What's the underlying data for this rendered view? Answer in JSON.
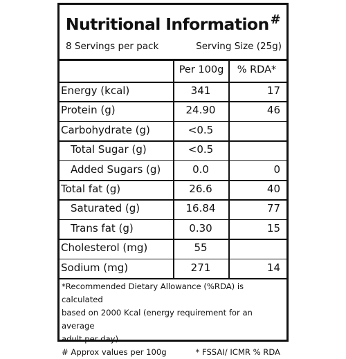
{
  "title": {
    "text": "Nutritional Information",
    "mark": "#"
  },
  "servings": {
    "per_pack": "8 Servings per pack",
    "size": "Serving Size (25g)"
  },
  "columns": {
    "per100": "Per 100g",
    "rda": "% RDA*"
  },
  "rows": [
    {
      "name": "Energy (kcal)",
      "per100": "341",
      "rda": "17",
      "indent": false
    },
    {
      "name": "Protein (g)",
      "per100": "24.90",
      "rda": "46",
      "indent": false
    },
    {
      "name": "Carbohydrate (g)",
      "per100": "<0.5",
      "rda": "",
      "indent": false
    },
    {
      "name": "Total Sugar (g)",
      "per100": "<0.5",
      "rda": "",
      "indent": true
    },
    {
      "name": "Added Sugars (g)",
      "per100": "0.0",
      "rda": "0",
      "indent": true
    },
    {
      "name": "Total fat (g)",
      "per100": "26.6",
      "rda": "40",
      "indent": false
    },
    {
      "name": "Saturated (g)",
      "per100": "16.84",
      "rda": "77",
      "indent": true
    },
    {
      "name": "Trans fat (g)",
      "per100": "0.30",
      "rda": "15",
      "indent": true
    },
    {
      "name": "Cholesterol (mg)",
      "per100": "55",
      "rda": "",
      "indent": false
    },
    {
      "name": "Sodium (mg)",
      "per100": "271",
      "rda": "14",
      "indent": false
    }
  ],
  "footnote": {
    "line1": "*Recommended Dietary Allowance (%RDA) is calculated",
    "line2": "based on 2000 Kcal (energy requirement for an average",
    "line3": "adult per day)",
    "approx": "# Approx values per 100g",
    "source": "* FSSAI/ ICMR % RDA"
  },
  "colors": {
    "ink": "#111111",
    "background": "#ffffff"
  }
}
